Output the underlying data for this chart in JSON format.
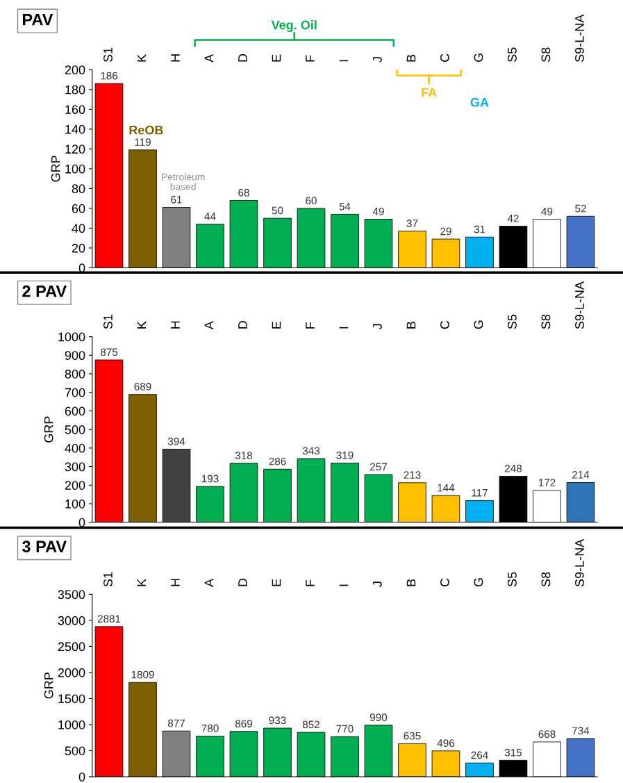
{
  "chart_data": [
    {
      "type": "bar",
      "title": "PAV",
      "ylabel": "GRP",
      "categories": [
        "S1",
        "K",
        "H",
        "A",
        "D",
        "E",
        "F",
        "I",
        "J",
        "B",
        "C",
        "G",
        "S5",
        "S8",
        "S9-L-NA"
      ],
      "values": [
        186,
        119,
        61,
        44,
        68,
        50,
        60,
        54,
        49,
        37,
        29,
        31,
        42,
        49,
        52
      ],
      "colors": [
        "#ff0000",
        "#7f6000",
        "#808080",
        "#00b050",
        "#00b050",
        "#00b050",
        "#00b050",
        "#00b050",
        "#00b050",
        "#ffc000",
        "#ffc000",
        "#00b0f0",
        "#000000",
        "#ffffff",
        "#4472c4"
      ],
      "ylim": [
        0,
        200
      ],
      "yticks": [
        0,
        20,
        40,
        60,
        80,
        100,
        120,
        140,
        160,
        180,
        200
      ],
      "data_labels": true,
      "grid": false,
      "legend": false,
      "annotations": [
        "Veg. Oil",
        "FA",
        "GA",
        "ReOB",
        "Petroleum based"
      ]
    },
    {
      "type": "bar",
      "title": "2 PAV",
      "ylabel": "GRP",
      "categories": [
        "S1",
        "K",
        "H",
        "A",
        "D",
        "E",
        "F",
        "I",
        "J",
        "B",
        "C",
        "G",
        "S5",
        "S8",
        "S9-L-NA"
      ],
      "values": [
        875,
        689,
        394,
        193,
        318,
        286,
        343,
        319,
        257,
        213,
        144,
        117,
        248,
        172,
        214
      ],
      "colors": [
        "#ff0000",
        "#7f6000",
        "#404040",
        "#00b050",
        "#00b050",
        "#00b050",
        "#00b050",
        "#00b050",
        "#00b050",
        "#ffc000",
        "#ffc000",
        "#00b0f0",
        "#000000",
        "#ffffff",
        "#2e75b6"
      ],
      "ylim": [
        0,
        1000
      ],
      "yticks": [
        0,
        100,
        200,
        300,
        400,
        500,
        600,
        700,
        800,
        900,
        1000
      ],
      "data_labels": true,
      "grid": false,
      "legend": false
    },
    {
      "type": "bar",
      "title": "3 PAV",
      "ylabel": "GRP",
      "categories": [
        "S1",
        "K",
        "H",
        "A",
        "D",
        "E",
        "F",
        "I",
        "J",
        "B",
        "C",
        "G",
        "S5",
        "S8",
        "S9-L-NA"
      ],
      "values": [
        2881,
        1809,
        877,
        780,
        869,
        933,
        852,
        770,
        990,
        635,
        496,
        264,
        315,
        668,
        734
      ],
      "colors": [
        "#ff0000",
        "#7f6000",
        "#808080",
        "#00b050",
        "#00b050",
        "#00b050",
        "#00b050",
        "#00b050",
        "#00b050",
        "#ffc000",
        "#ffc000",
        "#00b0f0",
        "#000000",
        "#ffffff",
        "#4472c4"
      ],
      "ylim": [
        0,
        3500
      ],
      "yticks": [
        0,
        500,
        1000,
        1500,
        2000,
        2500,
        3000,
        3500
      ],
      "data_labels": true,
      "grid": false,
      "legend": false
    }
  ]
}
